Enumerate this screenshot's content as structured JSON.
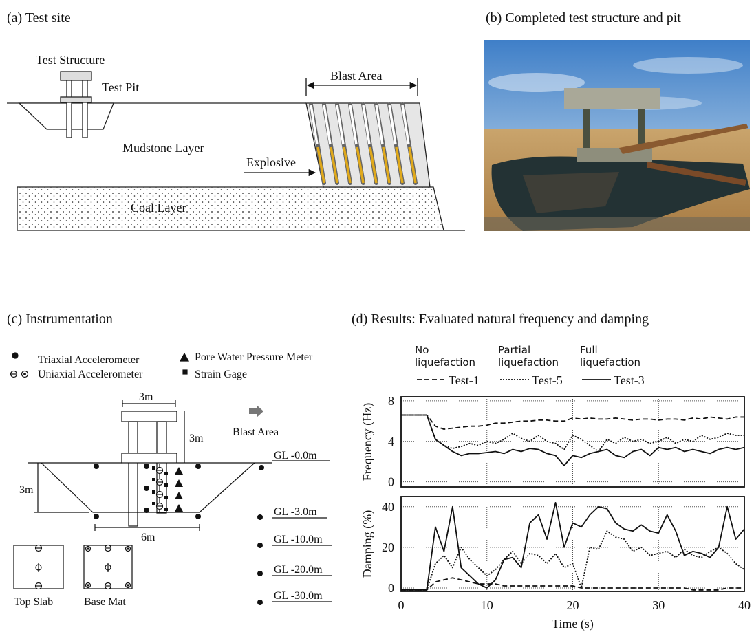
{
  "panel_a": {
    "title": "(a) Test site",
    "test_structure": "Test Structure",
    "test_pit": "Test Pit",
    "blast_area": "Blast Area",
    "mudstone": "Mudstone Layer",
    "explosive": "Explosive",
    "coal": "Coal Layer"
  },
  "panel_b": {
    "title": "(b) Completed test structure and pit"
  },
  "panel_c": {
    "title": "(c) Instrumentation",
    "legend": [
      "Triaxial Accelerometer",
      "Uniaxial Accelerometer",
      "Pore Water Pressure Meter",
      "Strain Gage"
    ],
    "dims": [
      "3m",
      "3m",
      "3m",
      "6m"
    ],
    "blast_area": "Blast Area",
    "levels": [
      "GL -0.0m",
      "GL -3.0m",
      "GL -10.0m",
      "GL -20.0m",
      "GL -30.0m"
    ],
    "details": [
      "Top Slab",
      "Base Mat"
    ]
  },
  "panel_d": {
    "title": "(d) Results: Evaluated natural frequency and damping"
  },
  "chart_data": [
    {
      "type": "line",
      "ylabel": "Frequency (Hz)",
      "annotations": [
        "No liquefaction",
        "Partial liquefaction",
        "Full liquefaction"
      ],
      "xlim": [
        0,
        40
      ],
      "xticks": [
        0,
        10,
        20,
        30,
        40
      ],
      "ylim": [
        -0.5,
        8.4
      ],
      "yticks": [
        0,
        4,
        8
      ],
      "grid": true,
      "x": [
        0,
        1,
        2,
        3,
        4,
        5,
        6,
        7,
        8,
        9,
        10,
        11,
        12,
        13,
        14,
        15,
        16,
        17,
        18,
        19,
        20,
        21,
        22,
        23,
        24,
        25,
        26,
        27,
        28,
        29,
        30,
        31,
        32,
        33,
        34,
        35,
        36,
        37,
        38,
        39,
        40
      ],
      "series": [
        {
          "name": "Test-1",
          "color": "#111111",
          "dash": "dashed",
          "values": [
            6.6,
            6.6,
            6.6,
            6.6,
            5.5,
            5.2,
            5.3,
            5.4,
            5.5,
            5.5,
            5.6,
            5.8,
            5.8,
            5.9,
            6.0,
            6.0,
            6.1,
            6.1,
            6.0,
            6.0,
            6.3,
            6.2,
            6.3,
            6.2,
            6.2,
            6.3,
            6.2,
            6.1,
            6.2,
            6.2,
            6.1,
            6.2,
            6.2,
            6.1,
            6.3,
            6.2,
            6.4,
            6.3,
            6.2,
            6.4,
            6.4
          ]
        },
        {
          "name": "Test-5",
          "color": "#111111",
          "dash": "dotted",
          "values": [
            6.6,
            6.6,
            6.6,
            6.6,
            4.2,
            3.6,
            3.3,
            3.5,
            3.8,
            3.6,
            4.0,
            3.8,
            4.2,
            4.8,
            4.3,
            4.0,
            4.6,
            4.0,
            3.8,
            3.2,
            4.6,
            4.2,
            3.6,
            3.0,
            4.2,
            3.8,
            4.4,
            4.0,
            4.2,
            3.8,
            4.0,
            4.4,
            3.8,
            4.2,
            4.0,
            4.6,
            4.2,
            4.4,
            4.8,
            4.6,
            4.6
          ]
        },
        {
          "name": "Test-3",
          "color": "#111111",
          "dash": "solid",
          "values": [
            6.6,
            6.6,
            6.6,
            6.6,
            4.2,
            3.6,
            3.0,
            2.6,
            2.8,
            2.8,
            2.9,
            3.0,
            2.8,
            3.2,
            3.0,
            3.3,
            3.2,
            2.8,
            2.6,
            1.6,
            2.6,
            2.4,
            2.8,
            3.0,
            3.2,
            2.6,
            2.4,
            3.0,
            3.2,
            2.6,
            3.4,
            3.2,
            3.4,
            3.0,
            3.2,
            3.0,
            2.8,
            3.2,
            3.4,
            3.2,
            3.4
          ]
        }
      ]
    },
    {
      "type": "line",
      "ylabel": "Damping (%)",
      "xlabel": "Time (s)",
      "xlim": [
        0,
        40
      ],
      "xticks": [
        0,
        10,
        20,
        30,
        40
      ],
      "ylim": [
        -1.7,
        45
      ],
      "yticks": [
        0,
        20,
        40
      ],
      "grid": true,
      "x": [
        0,
        1,
        2,
        3,
        4,
        5,
        6,
        7,
        8,
        9,
        10,
        11,
        12,
        13,
        14,
        15,
        16,
        17,
        18,
        19,
        20,
        21,
        22,
        23,
        24,
        25,
        26,
        27,
        28,
        29,
        30,
        31,
        32,
        33,
        34,
        35,
        36,
        37,
        38,
        39,
        40
      ],
      "series": [
        {
          "color": "#111111",
          "dash": "dashed",
          "values": [
            -1,
            -1,
            -1,
            -1,
            3,
            4,
            5,
            4,
            3,
            2,
            2,
            2,
            1,
            1,
            1,
            1,
            1,
            1,
            1,
            1,
            1,
            0,
            0,
            0,
            0,
            0,
            0,
            0,
            0,
            0,
            0,
            0,
            0,
            0,
            -1,
            -1,
            -1,
            -1,
            0,
            0,
            0
          ]
        },
        {
          "color": "#111111",
          "dash": "dotted",
          "values": [
            -1,
            -1,
            -1,
            -1,
            12,
            16,
            10,
            20,
            14,
            10,
            6,
            9,
            14,
            18,
            12,
            17,
            16,
            12,
            17,
            10,
            12,
            0,
            20,
            19,
            28,
            25,
            24,
            18,
            20,
            16,
            17,
            18,
            15,
            19,
            16,
            15,
            18,
            20,
            17,
            12,
            9
          ]
        },
        {
          "color": "#111111",
          "dash": "solid",
          "values": [
            -1,
            -1,
            -1,
            -1,
            30,
            18,
            40,
            10,
            6,
            2,
            0,
            4,
            14,
            15,
            10,
            32,
            36,
            24,
            42,
            20,
            32,
            30,
            36,
            40,
            39,
            32,
            29,
            28,
            31,
            28,
            27,
            36,
            28,
            16,
            18,
            17,
            15,
            20,
            40,
            24,
            29
          ]
        }
      ]
    }
  ]
}
